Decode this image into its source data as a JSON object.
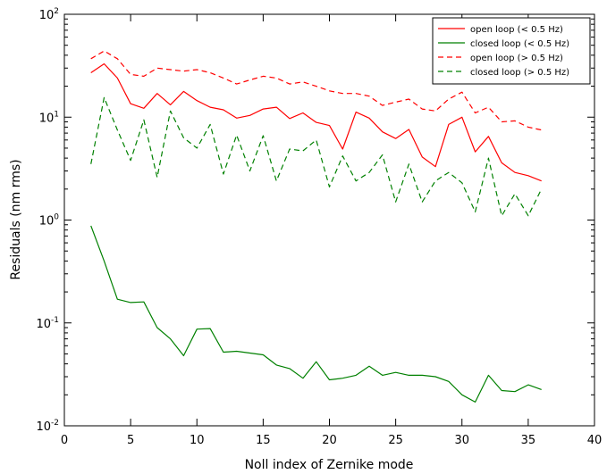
{
  "chart_data": {
    "type": "line",
    "xlabel": "Noll index of Zernike mode",
    "ylabel": "Residuals (nm rms)",
    "xlim": [
      0,
      40
    ],
    "ylim": [
      0.01,
      100
    ],
    "yscale": "log",
    "x_ticks": [
      0,
      5,
      10,
      15,
      20,
      25,
      30,
      35,
      40
    ],
    "x_tick_labels": [
      "0",
      "5",
      "10",
      "15",
      "20",
      "25",
      "30",
      "35",
      "40"
    ],
    "y_ticks": [
      0.01,
      0.1,
      1,
      10,
      100
    ],
    "y_tick_labels": [
      {
        "base": "10",
        "exp": "-2"
      },
      {
        "base": "10",
        "exp": "-1"
      },
      {
        "base": "10",
        "exp": "0"
      },
      {
        "base": "10",
        "exp": "1"
      },
      {
        "base": "10",
        "exp": "2"
      }
    ],
    "grid": false,
    "legend_position": "top-right",
    "x": [
      2,
      3,
      4,
      5,
      6,
      7,
      8,
      9,
      10,
      11,
      12,
      13,
      14,
      15,
      16,
      17,
      18,
      19,
      20,
      21,
      22,
      23,
      24,
      25,
      26,
      27,
      28,
      29,
      30,
      31,
      32,
      33,
      34,
      35,
      36
    ],
    "series": [
      {
        "name": "open loop (< 0.5 Hz)",
        "color": "#ff0000",
        "dash": "solid",
        "values": [
          27,
          33,
          24,
          13.5,
          12.2,
          17,
          13.2,
          17.8,
          14.5,
          12.5,
          11.8,
          9.8,
          10.4,
          12,
          12.5,
          9.7,
          11,
          8.9,
          8.3,
          4.9,
          11.2,
          9.8,
          7.2,
          6.2,
          7.6,
          4.1,
          3.3,
          8.5,
          10,
          4.6,
          6.5,
          3.6,
          2.9,
          2.7,
          2.4
        ]
      },
      {
        "name": "closed loop (< 0.5 Hz)",
        "color": "#008000",
        "dash": "solid",
        "values": [
          0.88,
          0.4,
          0.17,
          0.158,
          0.16,
          0.09,
          0.07,
          0.048,
          0.087,
          0.088,
          0.052,
          0.053,
          0.051,
          0.049,
          0.039,
          0.036,
          0.029,
          0.042,
          0.028,
          0.029,
          0.031,
          0.038,
          0.031,
          0.033,
          0.031,
          0.031,
          0.03,
          0.027,
          0.02,
          0.017,
          0.031,
          0.022,
          0.0215,
          0.025,
          0.0225
        ]
      },
      {
        "name": "open loop (> 0.5 Hz)",
        "color": "#ff0000",
        "dash": "dashed",
        "values": [
          37,
          44,
          37,
          26,
          25,
          30,
          29,
          28,
          29,
          27,
          24,
          21,
          23,
          25,
          24,
          21,
          22,
          20,
          18,
          17,
          17,
          16,
          13,
          14,
          15,
          12,
          11.5,
          15,
          17.5,
          11,
          12.5,
          9,
          9.2,
          8,
          7.5
        ]
      },
      {
        "name": "closed loop (> 0.5 Hz)",
        "color": "#008000",
        "dash": "dashed",
        "values": [
          3.5,
          15.5,
          7.5,
          3.8,
          9.4,
          2.6,
          11.5,
          6.3,
          5,
          8.5,
          2.8,
          6.7,
          3,
          6.6,
          2.4,
          4.9,
          4.7,
          6,
          2.1,
          4.2,
          2.4,
          2.9,
          4.3,
          1.5,
          3.5,
          1.5,
          2.4,
          2.9,
          2.3,
          1.2,
          4,
          1.1,
          1.8,
          1.1,
          2
        ]
      }
    ]
  }
}
